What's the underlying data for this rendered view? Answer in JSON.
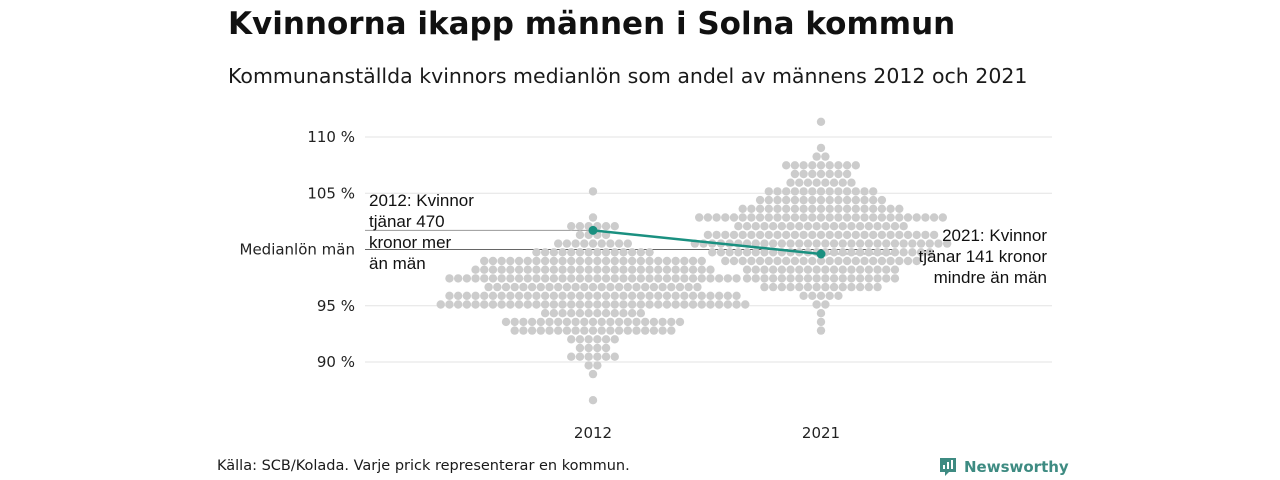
{
  "header": {
    "title": "Kvinnorna ikapp männen i Solna kommun",
    "subtitle": "Kommunanställda kvinnors medianlön som andel av männens 2012 och 2021"
  },
  "footer": {
    "source": "Källa: SCB/Kolada. Varje prick representerar en kommun.",
    "brand": "Newsworthy"
  },
  "colors": {
    "dots": "#cccccc",
    "highlight": "#1a9080",
    "grid": "#e3e3e3",
    "reference": "#666666",
    "brand": "#3e8b82"
  },
  "chart_data": {
    "type": "scatter",
    "categories": [
      "2012",
      "2021"
    ],
    "ylim": [
      86,
      111.5
    ],
    "yticks": [
      {
        "value": 90,
        "label": "90 %"
      },
      {
        "value": 95,
        "label": "95 %"
      },
      {
        "value": 100,
        "label": "Medianlön män"
      },
      {
        "value": 105,
        "label": "105 %"
      },
      {
        "value": 110,
        "label": "110 %"
      }
    ],
    "reference_line": 100,
    "beeswarm": [
      {
        "category": "2012",
        "count": 290,
        "center": 96.3,
        "spread": 2.7,
        "min": 86.6,
        "max": 105.2
      },
      {
        "category": "2021",
        "count": 290,
        "center": 101.3,
        "spread": 3.0,
        "min": 92.6,
        "max": 111.2
      }
    ],
    "highlight": {
      "name": "Solna",
      "points": [
        {
          "x": "2012",
          "y": 101.7
        },
        {
          "x": "2021",
          "y": 99.6
        }
      ]
    },
    "annotations": [
      {
        "x": "2012",
        "lines": [
          "2012: Kvinnor",
          "tjänar 470",
          "kronor mer",
          "än män"
        ]
      },
      {
        "x": "2021",
        "lines": [
          "2021: Kvinnor",
          "tjänar 141 kronor",
          "mindre än män"
        ]
      }
    ]
  }
}
